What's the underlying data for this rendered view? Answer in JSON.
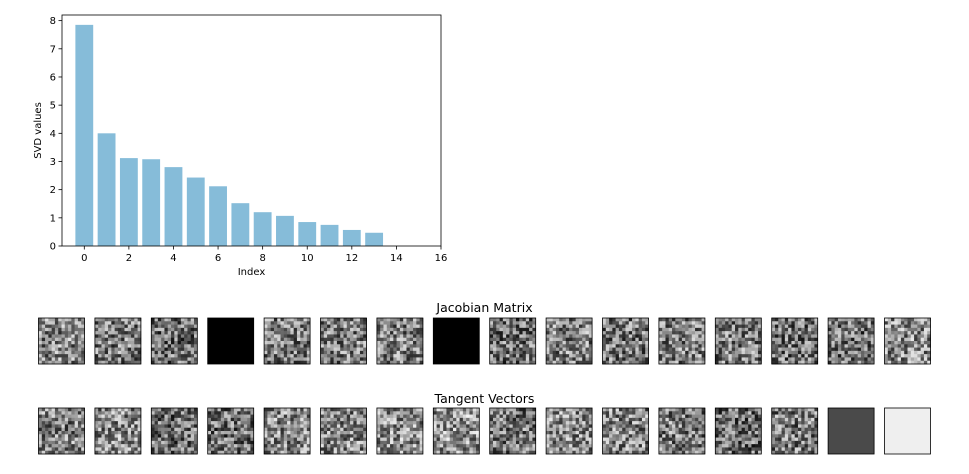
{
  "chart_data": [
    {
      "type": "bar",
      "xlabel": "Index",
      "ylabel": "SVD values",
      "x": [
        0,
        1,
        2,
        3,
        4,
        5,
        6,
        7,
        8,
        9,
        10,
        11,
        12,
        13
      ],
      "values": [
        7.85,
        4.0,
        3.12,
        3.08,
        2.8,
        2.43,
        2.12,
        1.52,
        1.2,
        1.07,
        0.85,
        0.75,
        0.57,
        0.47
      ],
      "xlim": [
        -1,
        16
      ],
      "ylim": [
        0,
        8.2
      ],
      "xticks": [
        0,
        2,
        4,
        6,
        8,
        10,
        12,
        14,
        16
      ],
      "yticks": [
        0,
        1,
        2,
        3,
        4,
        5,
        6,
        7,
        8
      ],
      "bar_color": "#86bcd9",
      "grid": false
    },
    {
      "type": "image_grid",
      "title": "Jacobian Matrix",
      "count": 16,
      "tiles": [
        "noise",
        "noise",
        "noise",
        "black",
        "noise",
        "noise",
        "noise",
        "black",
        "noise",
        "noise",
        "noise",
        "noise",
        "noise",
        "noise",
        "noise",
        "noise"
      ],
      "colormap": "gray"
    },
    {
      "type": "image_grid",
      "title": "Tangent Vectors",
      "count": 16,
      "tiles": [
        "noise",
        "noise",
        "noise",
        "noise",
        "noise",
        "noise",
        "noise",
        "noise",
        "noise",
        "noise",
        "noise",
        "noise",
        "noise",
        "noise",
        "dark-gray",
        "light-gray"
      ],
      "colormap": "gray"
    }
  ]
}
